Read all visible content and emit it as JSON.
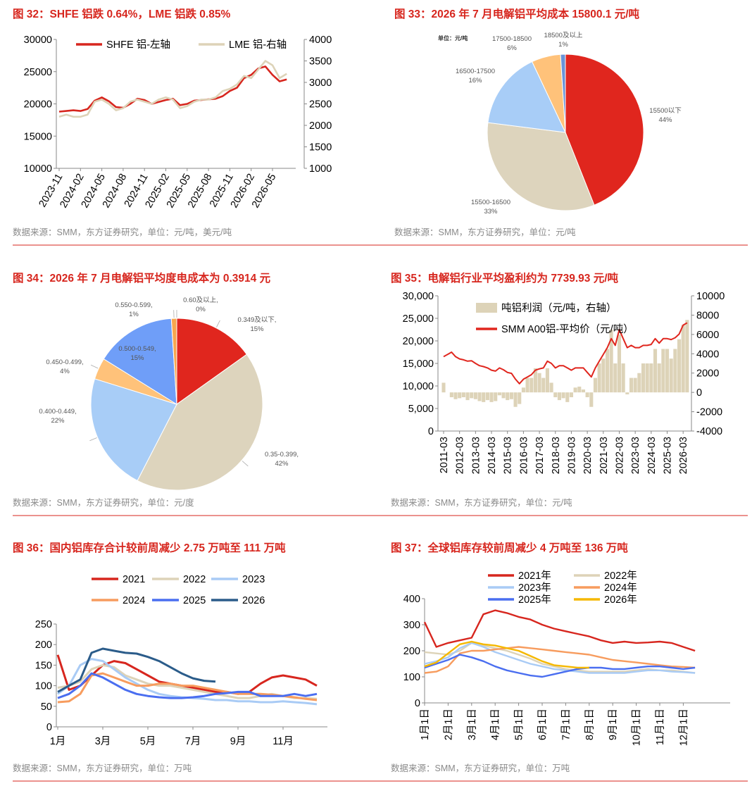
{
  "chart_data": [
    {
      "type": "line",
      "title": "图 32：SHFE 铝跌 0.64%，LME 铝跌 0.85%",
      "source": "数据来源：SMM，东方证券研究，单位：元/吨，美元/吨",
      "categories": [
        "2023-11",
        null,
        null,
        "2024-02",
        null,
        null,
        "2024-05",
        null,
        null,
        "2024-08",
        null,
        null,
        "2024-11",
        null,
        null,
        "2025-02",
        null,
        null,
        "2025-05",
        null,
        null,
        "2025-08",
        null,
        null,
        "2025-11",
        null,
        null,
        "2026-02",
        null,
        null,
        "2026-05",
        null,
        null
      ],
      "series": [
        {
          "name": "SHFE 铝-左轴",
          "color": "#d7261e",
          "values": [
            18800,
            18900,
            19000,
            18900,
            19200,
            20500,
            21000,
            20400,
            19500,
            19400,
            20000,
            20800,
            20600,
            20000,
            20300,
            20600,
            20800,
            19800,
            20000,
            20500,
            20600,
            20700,
            20800,
            21200,
            22000,
            22500,
            24000,
            24500,
            25500,
            25800,
            24500,
            23500,
            23800
          ]
        },
        {
          "name": "LME 铝-右轴",
          "color": "#ddd3b8",
          "axis": "y2",
          "values": [
            2200,
            2250,
            2200,
            2200,
            2250,
            2550,
            2600,
            2500,
            2350,
            2400,
            2550,
            2600,
            2550,
            2500,
            2600,
            2650,
            2600,
            2400,
            2450,
            2550,
            2600,
            2600,
            2650,
            2800,
            2850,
            2950,
            3150,
            3100,
            3300,
            3500,
            3400,
            3100,
            3200
          ]
        }
      ],
      "ylim": [
        10000,
        30000
      ],
      "yticks": [
        10000,
        15000,
        20000,
        25000,
        30000
      ],
      "y2lim": [
        1000,
        4000
      ],
      "y2ticks": [
        1000,
        1500,
        2000,
        2500,
        3000,
        3500,
        4000
      ],
      "grid": false
    },
    {
      "type": "pie",
      "title": "图 33：2026 年 7 月电解铝平均成本 15800.1 元/吨",
      "source": "数据来源：SMM，东方证券研究，单位：元/吨",
      "note": "单位：元/吨",
      "categories": [
        "15500以下",
        "15500-16500",
        "16500-17500",
        "17500-18500",
        "18500及以上"
      ],
      "values": [
        44,
        33,
        16,
        6,
        1
      ],
      "value_labels": [
        "44%",
        "33%",
        "16%",
        "6%",
        "1%"
      ],
      "colors": [
        "#e0261e",
        "#ddd4bd",
        "#a8cdf7",
        "#ffc27a",
        "#6a93d8"
      ]
    },
    {
      "type": "pie",
      "title": "图 34：2026 年 7 月电解铝平均度电成本为 0.3914 元",
      "source": "数据来源：SMM，东方证券研究，单位：元/度",
      "categories": [
        "0.349及以下,",
        "0.35-0.399,",
        "0.400-0.449,",
        "0.450-0.499,",
        "0.500-0.549,",
        "0.550-0.599,",
        "0.60及以上,"
      ],
      "values": [
        15,
        42,
        22,
        4,
        15,
        1,
        0
      ],
      "value_labels": [
        "15%",
        "42%",
        "22%",
        "4%",
        "15%",
        "1%",
        "0%"
      ],
      "colors": [
        "#e0261e",
        "#ddd4bd",
        "#a8cdf7",
        "#ffc27a",
        "#6f9ef8",
        "#f7a64e",
        "#f4b183"
      ]
    },
    {
      "type": "combo",
      "title": "图 35：电解铝行业平均盈利约为 7739.93 元/吨",
      "source": "数据来源：SMM，东方证券研究，单位：元/吨",
      "categories": [
        "2011-03",
        null,
        null,
        null,
        "2012-03",
        null,
        null,
        null,
        "2013-03",
        null,
        null,
        null,
        "2014-03",
        null,
        null,
        null,
        "2015-03",
        null,
        null,
        null,
        "2016-03",
        null,
        null,
        null,
        "2017-03",
        null,
        null,
        null,
        "2018-03",
        null,
        null,
        null,
        "2019-03",
        null,
        null,
        null,
        "2020-03",
        null,
        null,
        null,
        "2021-03",
        null,
        null,
        null,
        "2022-03",
        null,
        null,
        null,
        "2023-03",
        null,
        null,
        null,
        "2024-03",
        null,
        null,
        null,
        "2025-03",
        null,
        null,
        null,
        "2026-03",
        null
      ],
      "series": [
        {
          "name": "吨铝利润（元/吨，右轴）",
          "color": "#ddd3b8",
          "type": "bar",
          "axis": "y2",
          "values": [
            1000,
            0,
            -500,
            -700,
            -600,
            -500,
            -800,
            -600,
            -700,
            -900,
            -1000,
            -800,
            -1000,
            -900,
            -300,
            -600,
            -800,
            -700,
            -1500,
            -1200,
            500,
            1500,
            1500,
            2500,
            2000,
            1500,
            2500,
            1000,
            -500,
            -800,
            -600,
            -1000,
            -500,
            500,
            600,
            300,
            -500,
            -1500,
            1500,
            3000,
            3500,
            4500,
            6500,
            3000,
            6000,
            3000,
            -200,
            1500,
            1500,
            2000,
            3000,
            3000,
            3000,
            4500,
            3000,
            4500,
            4500,
            3500,
            4500,
            5500,
            7000,
            7500
          ]
        },
        {
          "name": "SMM A00铝-平均价（元/吨）",
          "color": "#e0261e",
          "type": "line",
          "values": [
            16500,
            17000,
            17500,
            16500,
            16000,
            15800,
            15500,
            15600,
            15000,
            14500,
            14300,
            14000,
            13500,
            13300,
            14000,
            13600,
            13000,
            12800,
            11500,
            10500,
            11500,
            12000,
            12500,
            13500,
            13800,
            14000,
            15500,
            15000,
            14000,
            14500,
            14500,
            14000,
            13500,
            14000,
            14000,
            14000,
            13000,
            12000,
            14000,
            15500,
            17000,
            18500,
            20500,
            19000,
            22500,
            20500,
            18500,
            19000,
            18500,
            18500,
            19000,
            19000,
            19200,
            20500,
            19500,
            20500,
            20500,
            20300,
            20700,
            21500,
            23500,
            24000
          ]
        }
      ],
      "ylim": [
        0,
        30000
      ],
      "yticks": [
        0,
        {
          "value": 5000,
          "label": "5,000"
        },
        {
          "value": 10000,
          "label": "10,000"
        },
        {
          "value": 15000,
          "label": "15,000"
        },
        {
          "value": 20000,
          "label": "20,000"
        },
        {
          "value": 25000,
          "label": "25,000"
        },
        {
          "value": 30000,
          "label": "30,000"
        }
      ],
      "y2lim": [
        -4000,
        10000
      ],
      "y2ticks": [
        -4000,
        -2000,
        0,
        2000,
        4000,
        6000,
        8000,
        10000
      ],
      "grid": false
    },
    {
      "type": "line",
      "title": "图 36：国内铝库存合计较前周减少 2.75 万吨至 111 万吨",
      "source": "数据来源：SMM，东方证券研究，单位：万吨",
      "categories": [
        "1月",
        null,
        null,
        null,
        "3月",
        null,
        null,
        null,
        "5月",
        null,
        null,
        null,
        "7月",
        null,
        null,
        null,
        "9月",
        null,
        null,
        null,
        "11月",
        null,
        null,
        null
      ],
      "series": [
        {
          "name": "2021",
          "color": "#d7261e",
          "values": [
            175,
            90,
            100,
            125,
            150,
            160,
            155,
            140,
            125,
            110,
            105,
            100,
            95,
            90,
            85,
            85,
            80,
            85,
            105,
            120,
            125,
            120,
            115,
            100
          ]
        },
        {
          "name": "2022",
          "color": "#ddd3b8",
          "values": [
            95,
            100,
            110,
            140,
            150,
            145,
            125,
            115,
            105,
            100,
            100,
            95,
            90,
            85,
            80,
            75,
            70,
            70,
            75,
            80,
            75,
            70,
            70,
            68
          ]
        },
        {
          "name": "2023",
          "color": "#a9cbf5",
          "values": [
            80,
            100,
            150,
            165,
            160,
            140,
            120,
            105,
            90,
            80,
            75,
            72,
            70,
            68,
            65,
            65,
            62,
            62,
            60,
            60,
            62,
            60,
            58,
            55
          ]
        },
        {
          "name": "2024",
          "color": "#f79c5e",
          "values": [
            60,
            62,
            80,
            125,
            130,
            120,
            110,
            100,
            100,
            105,
            105,
            100,
            100,
            95,
            90,
            85,
            80,
            80,
            80,
            78,
            75,
            72,
            68,
            65
          ]
        },
        {
          "name": "2025",
          "color": "#4a6ef0",
          "values": [
            70,
            80,
            100,
            130,
            120,
            105,
            90,
            80,
            75,
            72,
            70,
            70,
            72,
            75,
            80,
            82,
            85,
            85,
            75,
            75,
            75,
            80,
            75,
            80
          ]
        },
        {
          "name": "2026",
          "color": "#2b5c8a",
          "values": [
            85,
            100,
            115,
            180,
            190,
            185,
            180,
            178,
            170,
            160,
            145,
            130,
            118,
            112,
            110,
            null,
            null,
            null,
            null,
            null,
            null,
            null,
            null,
            null
          ]
        }
      ],
      "ylim": [
        0,
        250
      ],
      "yticks": [
        0,
        50,
        100,
        150,
        200,
        250
      ],
      "grid": false
    },
    {
      "type": "line",
      "title": "图 37：全球铝库存较前周减少 4 万吨至 136 万吨",
      "source": "数据来源：SMM，东方证券研究，单位：万吨",
      "categories": [
        "1月1日",
        null,
        "2月1日",
        null,
        "3月1日",
        null,
        "4月1日",
        null,
        "5月1日",
        null,
        "6月1日",
        null,
        "7月1日",
        null,
        "8月1日",
        null,
        "9月1日",
        null,
        "10月1日",
        null,
        "11月1日",
        null,
        "12月1日",
        null
      ],
      "series": [
        {
          "name": "2021年",
          "color": "#d7261e",
          "values": [
            310,
            215,
            230,
            240,
            250,
            340,
            355,
            345,
            330,
            320,
            300,
            285,
            275,
            265,
            255,
            240,
            230,
            235,
            230,
            232,
            235,
            230,
            215,
            200
          ]
        },
        {
          "name": "2022年",
          "color": "#ddd3b8",
          "values": [
            195,
            190,
            185,
            200,
            230,
            220,
            210,
            200,
            185,
            170,
            150,
            140,
            130,
            125,
            120,
            120,
            120,
            120,
            125,
            130,
            125,
            125,
            120,
            115
          ]
        },
        {
          "name": "2023年",
          "color": "#a9cbf5",
          "values": [
            150,
            160,
            175,
            210,
            230,
            215,
            195,
            180,
            165,
            150,
            140,
            130,
            125,
            120,
            115,
            115,
            115,
            115,
            120,
            125,
            125,
            120,
            118,
            115
          ]
        },
        {
          "name": "2024年",
          "color": "#f79c5e",
          "values": [
            115,
            120,
            140,
            190,
            200,
            200,
            205,
            210,
            215,
            210,
            205,
            200,
            195,
            190,
            185,
            175,
            165,
            160,
            155,
            150,
            145,
            140,
            138,
            135
          ]
        },
        {
          "name": "2025年",
          "color": "#4a6ef0",
          "values": [
            135,
            150,
            165,
            185,
            175,
            160,
            140,
            125,
            115,
            105,
            100,
            110,
            120,
            130,
            135,
            135,
            130,
            130,
            135,
            140,
            140,
            135,
            130,
            135
          ]
        },
        {
          "name": "2026年",
          "color": "#f5b800",
          "values": [
            140,
            155,
            190,
            225,
            235,
            225,
            220,
            210,
            200,
            180,
            160,
            145,
            140,
            135,
            135,
            null,
            null,
            null,
            null,
            null,
            null,
            null,
            null,
            null
          ]
        }
      ],
      "ylim": [
        0,
        400
      ],
      "yticks": [
        0,
        100,
        200,
        300,
        400
      ],
      "grid": false
    }
  ]
}
